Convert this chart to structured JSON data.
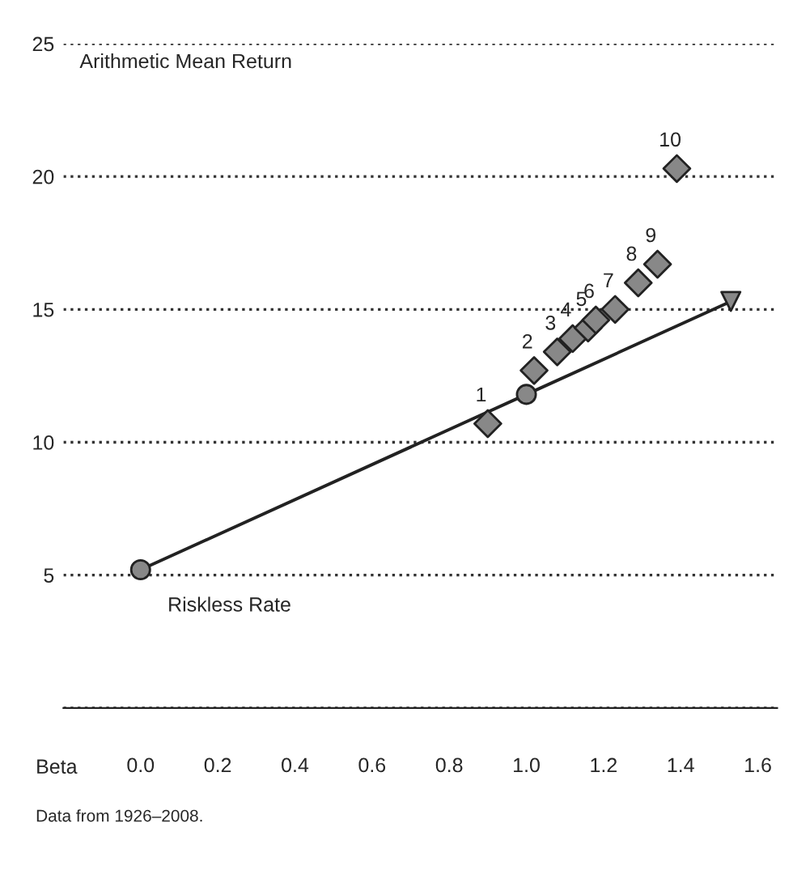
{
  "chart_data": {
    "type": "scatter",
    "ylabel": "Arithmetic Mean Return",
    "xlabel": "Beta",
    "annotations": [
      "Data from 1926–2008.",
      {
        "text": "Riskless Rate",
        "x": 0.0,
        "y": 5.2
      },
      {
        "text": "1",
        "x": 0.9,
        "y": 10.7
      },
      {
        "text": "2",
        "x": 1.02,
        "y": 12.7
      },
      {
        "text": "3",
        "x": 1.08,
        "y": 13.4
      },
      {
        "text": "4",
        "x": 1.12,
        "y": 13.9
      },
      {
        "text": "5",
        "x": 1.16,
        "y": 14.3
      },
      {
        "text": "6",
        "x": 1.18,
        "y": 14.6
      },
      {
        "text": "7",
        "x": 1.23,
        "y": 15.0
      },
      {
        "text": "8",
        "x": 1.29,
        "y": 16.0
      },
      {
        "text": "9",
        "x": 1.34,
        "y": 16.7
      },
      {
        "text": "10",
        "x": 1.39,
        "y": 20.3
      }
    ],
    "series": [
      {
        "type": "line",
        "color": "#222222",
        "line_style": "solid",
        "x": [
          0.0,
          1.0,
          1.53
        ],
        "values": [
          5.2,
          11.8,
          15.3
        ]
      },
      {
        "color": "#888888",
        "marker": "diamond",
        "x": [
          0.9,
          1.02,
          1.08,
          1.12,
          1.16,
          1.18,
          1.23,
          1.29,
          1.34,
          1.39
        ],
        "values": [
          10.7,
          12.7,
          13.4,
          13.9,
          14.3,
          14.6,
          15.0,
          16.0,
          16.7,
          20.3
        ]
      },
      {
        "color": "#888888",
        "marker": "circle",
        "x": [
          0.0,
          1.0
        ],
        "values": [
          5.2,
          11.8
        ]
      },
      {
        "color": "#888888",
        "marker": "triangle",
        "x": [
          1.53
        ],
        "values": [
          15.3
        ]
      }
    ],
    "xlim": [
      -0.2,
      1.65
    ],
    "xticks": [
      {
        "value": 0.0,
        "label": "0.0"
      },
      0.2,
      0.4,
      0.6,
      0.8,
      {
        "value": 1.0,
        "label": "1.0"
      },
      1.2,
      1.4,
      1.6
    ],
    "ylim": [
      0,
      25
    ],
    "yticks": [
      {
        "value": 0,
        "label": null
      },
      5,
      10,
      15,
      20,
      25
    ],
    "grid": "y",
    "legend": false
  }
}
